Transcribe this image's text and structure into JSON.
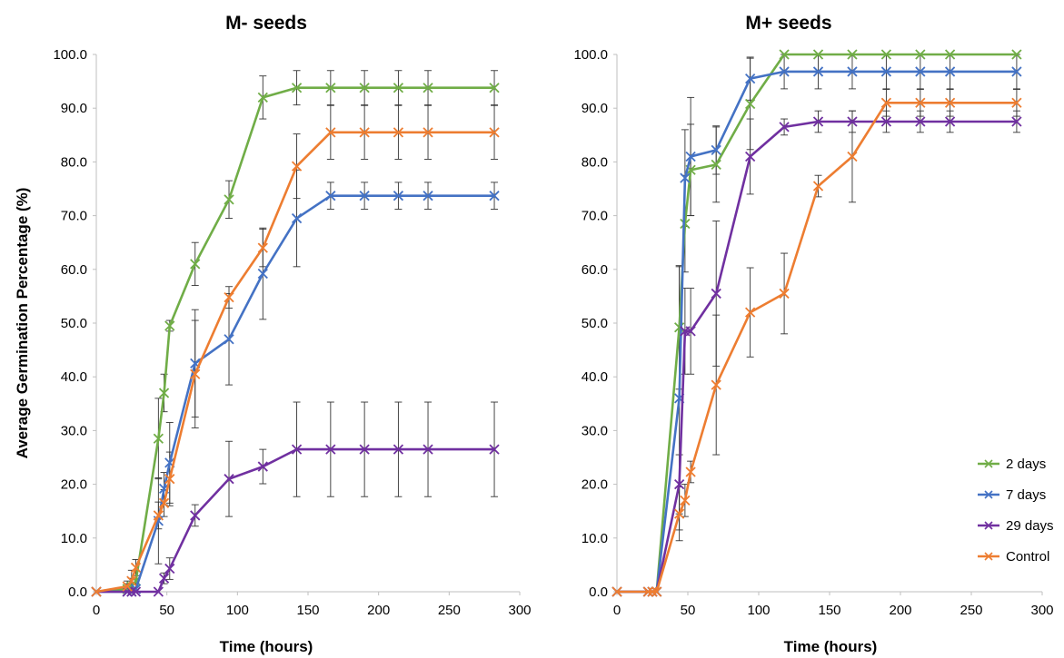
{
  "chart_data": [
    {
      "type": "line",
      "title": "M- seeds",
      "xlabel": "Time (hours)",
      "ylabel": "Average Germination Percentage (%)",
      "xlim": [
        0,
        300
      ],
      "ylim": [
        0,
        100
      ],
      "xticks": [
        "0",
        "50",
        "100",
        "150",
        "200",
        "250",
        "300"
      ],
      "yticks": [
        "0.0",
        "10.0",
        "20.0",
        "30.0",
        "40.0",
        "50.0",
        "60.0",
        "70.0",
        "80.0",
        "90.0",
        "100.0"
      ],
      "grid": false,
      "series": [
        {
          "name": "2 days",
          "color": "#70ad47",
          "x": [
            0,
            22,
            25,
            28,
            44,
            48,
            52,
            70,
            94,
            118,
            142,
            166,
            190,
            214,
            235,
            282
          ],
          "y": [
            0,
            0.5,
            1,
            2,
            28.5,
            37,
            49.5,
            61,
            73,
            92,
            93.8,
            93.8,
            93.8,
            93.8,
            93.8,
            93.8
          ],
          "err": [
            0,
            1,
            1.5,
            2,
            7.5,
            3.5,
            1,
            4,
            3.5,
            4,
            3.2,
            3.2,
            3.2,
            3.2,
            3.2,
            3.2
          ]
        },
        {
          "name": "7 days",
          "color": "#4472c4",
          "x": [
            0,
            22,
            25,
            28,
            44,
            48,
            52,
            70,
            94,
            118,
            142,
            166,
            190,
            214,
            235,
            282
          ],
          "y": [
            0,
            0,
            0,
            0.5,
            13.2,
            19.2,
            24,
            42.5,
            47,
            59.2,
            69.5,
            73.7,
            73.7,
            73.7,
            73.7,
            73.7
          ],
          "err": [
            0,
            0,
            0,
            1,
            8,
            3,
            7.5,
            10,
            8.5,
            8.5,
            9,
            2.5,
            2.5,
            2.5,
            2.5,
            2.5
          ]
        },
        {
          "name": "29 days",
          "color": "#7030a0",
          "x": [
            0,
            22,
            25,
            28,
            44,
            48,
            52,
            70,
            94,
            118,
            142,
            166,
            190,
            214,
            235,
            282
          ],
          "y": [
            0,
            0,
            0,
            0,
            0,
            2.5,
            4.3,
            14.2,
            21,
            23.3,
            26.5,
            26.5,
            26.5,
            26.5,
            26.5,
            26.5
          ],
          "err": [
            0,
            0,
            0,
            0,
            0,
            1,
            2,
            2,
            7,
            3.2,
            8.8,
            8.8,
            8.8,
            8.8,
            8.8,
            8.8
          ]
        },
        {
          "name": "Control",
          "color": "#ed7d31",
          "x": [
            0,
            22,
            25,
            28,
            44,
            48,
            52,
            70,
            94,
            118,
            142,
            166,
            190,
            214,
            235,
            282
          ],
          "y": [
            0,
            1,
            2,
            4.5,
            14.2,
            16.5,
            21,
            40.5,
            54.8,
            64,
            79.2,
            85.5,
            85.5,
            85.5,
            85.5,
            85.5
          ],
          "err": [
            0,
            1,
            2,
            1.5,
            2.5,
            2.5,
            5,
            10,
            2,
            3.5,
            6,
            5,
            5,
            5,
            5,
            5
          ]
        }
      ]
    },
    {
      "type": "line",
      "title": "M+ seeds",
      "xlabel": "Time (hours)",
      "ylabel": "",
      "xlim": [
        0,
        300
      ],
      "ylim": [
        0,
        100
      ],
      "xticks": [
        "0",
        "50",
        "100",
        "150",
        "200",
        "250",
        "300"
      ],
      "yticks": [
        "0.0",
        "10.0",
        "20.0",
        "30.0",
        "40.0",
        "50.0",
        "60.0",
        "70.0",
        "80.0",
        "90.0",
        "100.0"
      ],
      "grid": false,
      "legend": "right",
      "series": [
        {
          "name": "2 days",
          "color": "#70ad47",
          "x": [
            0,
            22,
            25,
            28,
            44,
            48,
            52,
            70,
            94,
            118,
            142,
            166,
            190,
            214,
            235,
            282
          ],
          "y": [
            0,
            0,
            0,
            0,
            49.2,
            68.5,
            78.5,
            79.5,
            90.8,
            100,
            100,
            100,
            100,
            100,
            100,
            100
          ],
          "err": [
            0,
            0,
            0,
            0,
            11.5,
            9,
            8.5,
            7,
            8.5,
            0,
            0,
            0,
            0,
            0,
            0,
            0
          ]
        },
        {
          "name": "7 days",
          "color": "#4472c4",
          "x": [
            0,
            22,
            25,
            28,
            44,
            48,
            52,
            70,
            94,
            118,
            142,
            166,
            190,
            214,
            235,
            282
          ],
          "y": [
            0,
            0,
            0,
            0,
            36,
            77,
            81,
            82.2,
            95.5,
            96.8,
            96.8,
            96.8,
            96.8,
            96.8,
            96.8,
            96.8
          ],
          "err": [
            0,
            0,
            0,
            0,
            24.5,
            9,
            11,
            4.5,
            4,
            3.2,
            3.2,
            3.2,
            3.2,
            3.2,
            3.2,
            3.2
          ]
        },
        {
          "name": "29 days",
          "color": "#7030a0",
          "x": [
            0,
            22,
            25,
            28,
            44,
            48,
            52,
            70,
            94,
            118,
            142,
            166,
            190,
            214,
            235,
            282
          ],
          "y": [
            0,
            0,
            0,
            0,
            20,
            48.5,
            48.5,
            55.5,
            81,
            86.5,
            87.5,
            87.5,
            87.5,
            87.5,
            87.5,
            87.5
          ],
          "err": [
            0,
            0,
            0,
            0,
            5.5,
            8,
            8,
            13.5,
            7,
            1.5,
            2,
            2,
            2,
            2,
            2,
            2
          ]
        },
        {
          "name": "Control",
          "color": "#ed7d31",
          "x": [
            0,
            22,
            25,
            28,
            44,
            48,
            52,
            70,
            94,
            118,
            142,
            166,
            190,
            214,
            235,
            282
          ],
          "y": [
            0,
            0,
            0,
            0,
            14.5,
            17,
            22.3,
            38.5,
            52,
            55.5,
            75.5,
            81,
            91,
            91,
            91,
            91
          ],
          "err": [
            0,
            0,
            0,
            0,
            5,
            3,
            2,
            13,
            8.3,
            7.5,
            2,
            8.5,
            2.5,
            2.5,
            2.5,
            2.5
          ]
        }
      ]
    }
  ]
}
